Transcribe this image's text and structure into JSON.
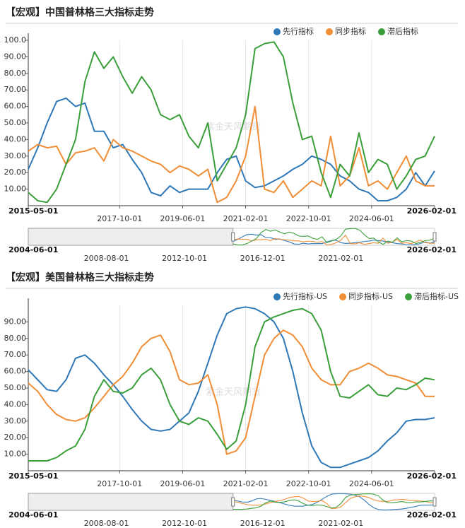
{
  "chart_data": [
    {
      "type": "line",
      "title": "【宏观】中国普林格三大指标走势",
      "watermark": "紫金天风期货",
      "x": [
        "2015-05-01",
        "2015-08-01",
        "2015-11-01",
        "2016-02-01",
        "2016-05-01",
        "2016-08-01",
        "2016-11-01",
        "2017-02-01",
        "2017-05-01",
        "2017-08-01",
        "2017-11-01",
        "2018-02-01",
        "2018-05-01",
        "2018-08-01",
        "2018-11-01",
        "2019-02-01",
        "2019-05-01",
        "2019-08-01",
        "2019-11-01",
        "2020-02-01",
        "2020-05-01",
        "2020-08-01",
        "2020-11-01",
        "2021-02-01",
        "2021-05-01",
        "2021-08-01",
        "2021-11-01",
        "2022-02-01",
        "2022-05-01",
        "2022-08-01",
        "2022-11-01",
        "2023-02-01",
        "2023-05-01",
        "2023-08-01",
        "2023-11-01",
        "2024-02-01",
        "2024-05-01",
        "2024-08-01",
        "2024-11-01",
        "2025-02-01",
        "2025-05-01",
        "2025-08-01",
        "2025-11-01",
        "2026-02-01"
      ],
      "series": [
        {
          "name": "先行指标",
          "color": "#2f78b8",
          "values": [
            22,
            35,
            50,
            63,
            65,
            60,
            62,
            45,
            45,
            35,
            37,
            28,
            20,
            8,
            6,
            12,
            8,
            10,
            10,
            10,
            20,
            28,
            30,
            15,
            11,
            12,
            15,
            18,
            22,
            25,
            30,
            28,
            25,
            18,
            15,
            10,
            8,
            3,
            3,
            5,
            10,
            20,
            12,
            21
          ]
        },
        {
          "name": "同步指标",
          "color": "#f08d35",
          "values": [
            33,
            37,
            35,
            36,
            25,
            32,
            33,
            35,
            27,
            40,
            35,
            33,
            30,
            27,
            25,
            20,
            24,
            22,
            18,
            22,
            2,
            5,
            15,
            30,
            60,
            10,
            8,
            15,
            5,
            10,
            15,
            12,
            42,
            12,
            18,
            35,
            12,
            15,
            10,
            20,
            30,
            15,
            12,
            12
          ]
        },
        {
          "name": "滞后指标",
          "color": "#3a9f3a",
          "values": [
            8,
            3,
            2,
            10,
            25,
            40,
            75,
            93,
            83,
            90,
            78,
            68,
            78,
            70,
            55,
            52,
            55,
            42,
            35,
            50,
            15,
            25,
            35,
            55,
            95,
            98,
            99,
            90,
            62,
            40,
            42,
            20,
            5,
            25,
            18,
            44,
            20,
            28,
            25,
            10,
            18,
            28,
            30,
            42
          ]
        }
      ],
      "xlim": [
        "2015-05-01",
        "2026-02-01"
      ],
      "xticks": [
        "2015-05-01",
        "2017-10-01",
        "2019-06-01",
        "2021-02-01",
        "2022-10-01",
        "2024-06-01",
        "2026-02-01"
      ],
      "ylim": [
        0,
        100
      ],
      "yticks": [
        {
          "value": 10,
          "label": "10.00"
        },
        {
          "value": 20,
          "label": "20.00"
        },
        {
          "value": 30,
          "label": "30.00"
        },
        {
          "value": 40,
          "label": "40.00"
        },
        {
          "value": 50,
          "label": "50.00"
        },
        {
          "value": 60,
          "label": "60.00"
        },
        {
          "value": 70,
          "label": "70.00"
        },
        {
          "value": 80,
          "label": "80.00"
        },
        {
          "value": 90,
          "label": "90.00"
        },
        {
          "value": 100,
          "label": "100.0"
        }
      ],
      "grid": true,
      "slider": {
        "range": [
          "2004-06-01",
          "2026-02-01"
        ],
        "labels": [
          "2008-08-01",
          "2012-10-01",
          "2016-12-01",
          "2021-02-01"
        ]
      }
    },
    {
      "type": "line",
      "title": "【宏观】美国普林格三大指标走势",
      "watermark": "紫金天风期货",
      "x": [
        "2015-05-01",
        "2015-08-01",
        "2015-11-01",
        "2016-02-01",
        "2016-05-01",
        "2016-08-01",
        "2016-11-01",
        "2017-02-01",
        "2017-05-01",
        "2017-08-01",
        "2017-11-01",
        "2018-02-01",
        "2018-05-01",
        "2018-08-01",
        "2018-11-01",
        "2019-02-01",
        "2019-05-01",
        "2019-08-01",
        "2019-11-01",
        "2020-02-01",
        "2020-05-01",
        "2020-08-01",
        "2020-11-01",
        "2021-02-01",
        "2021-05-01",
        "2021-08-01",
        "2021-11-01",
        "2022-02-01",
        "2022-05-01",
        "2022-08-01",
        "2022-11-01",
        "2023-02-01",
        "2023-05-01",
        "2023-08-01",
        "2023-11-01",
        "2024-02-01",
        "2024-05-01",
        "2024-08-01",
        "2024-11-01",
        "2025-02-01",
        "2025-05-01",
        "2025-08-01",
        "2025-11-01",
        "2026-02-01"
      ],
      "series": [
        {
          "name": "先行指标-US",
          "color": "#2f78b8",
          "values": [
            61,
            55,
            49,
            48,
            55,
            68,
            70,
            65,
            58,
            52,
            45,
            37,
            30,
            25,
            24,
            25,
            30,
            35,
            48,
            65,
            82,
            95,
            98,
            99,
            98,
            95,
            90,
            80,
            60,
            35,
            15,
            5,
            2,
            2,
            4,
            6,
            8,
            12,
            18,
            23,
            30,
            31,
            31,
            32
          ]
        },
        {
          "name": "同步指标-US",
          "color": "#f08d35",
          "values": [
            53,
            48,
            40,
            34,
            31,
            30,
            32,
            38,
            45,
            52,
            57,
            65,
            75,
            80,
            82,
            72,
            55,
            52,
            53,
            58,
            40,
            10,
            12,
            20,
            45,
            70,
            80,
            85,
            82,
            75,
            62,
            55,
            52,
            52,
            60,
            62,
            65,
            62,
            58,
            57,
            55,
            53,
            45,
            45
          ]
        },
        {
          "name": "滞后指标-US",
          "color": "#3a9f3a",
          "values": [
            6,
            6,
            6,
            8,
            12,
            15,
            25,
            45,
            55,
            48,
            47,
            50,
            58,
            62,
            55,
            40,
            30,
            28,
            32,
            30,
            22,
            13,
            18,
            40,
            75,
            90,
            93,
            95,
            97,
            98,
            95,
            85,
            60,
            45,
            44,
            48,
            52,
            46,
            45,
            50,
            49,
            52,
            56,
            55
          ]
        }
      ],
      "xlim": [
        "2015-05-01",
        "2026-02-01"
      ],
      "xticks": [
        "2015-05-01",
        "2017-10-01",
        "2019-06-01",
        "2021-02-01",
        "2022-10-01",
        "2024-06-01",
        "2026-02-01"
      ],
      "ylim": [
        0,
        100
      ],
      "yticks": [
        {
          "value": 10,
          "label": "10.00"
        },
        {
          "value": 20,
          "label": "20.00"
        },
        {
          "value": 30,
          "label": "30.00"
        },
        {
          "value": 40,
          "label": "40.00"
        },
        {
          "value": 50,
          "label": "50.00"
        },
        {
          "value": 60,
          "label": "60.00"
        },
        {
          "value": 70,
          "label": "70.00"
        },
        {
          "value": 80,
          "label": "80.00"
        },
        {
          "value": 90,
          "label": "90.00"
        }
      ],
      "grid": true,
      "slider": {
        "range": [
          "2004-06-01",
          "2026-02-01"
        ],
        "labels": [
          "2008-08-01",
          "2012-10-01",
          "2016-12-01",
          "2021-02-01"
        ]
      }
    }
  ]
}
